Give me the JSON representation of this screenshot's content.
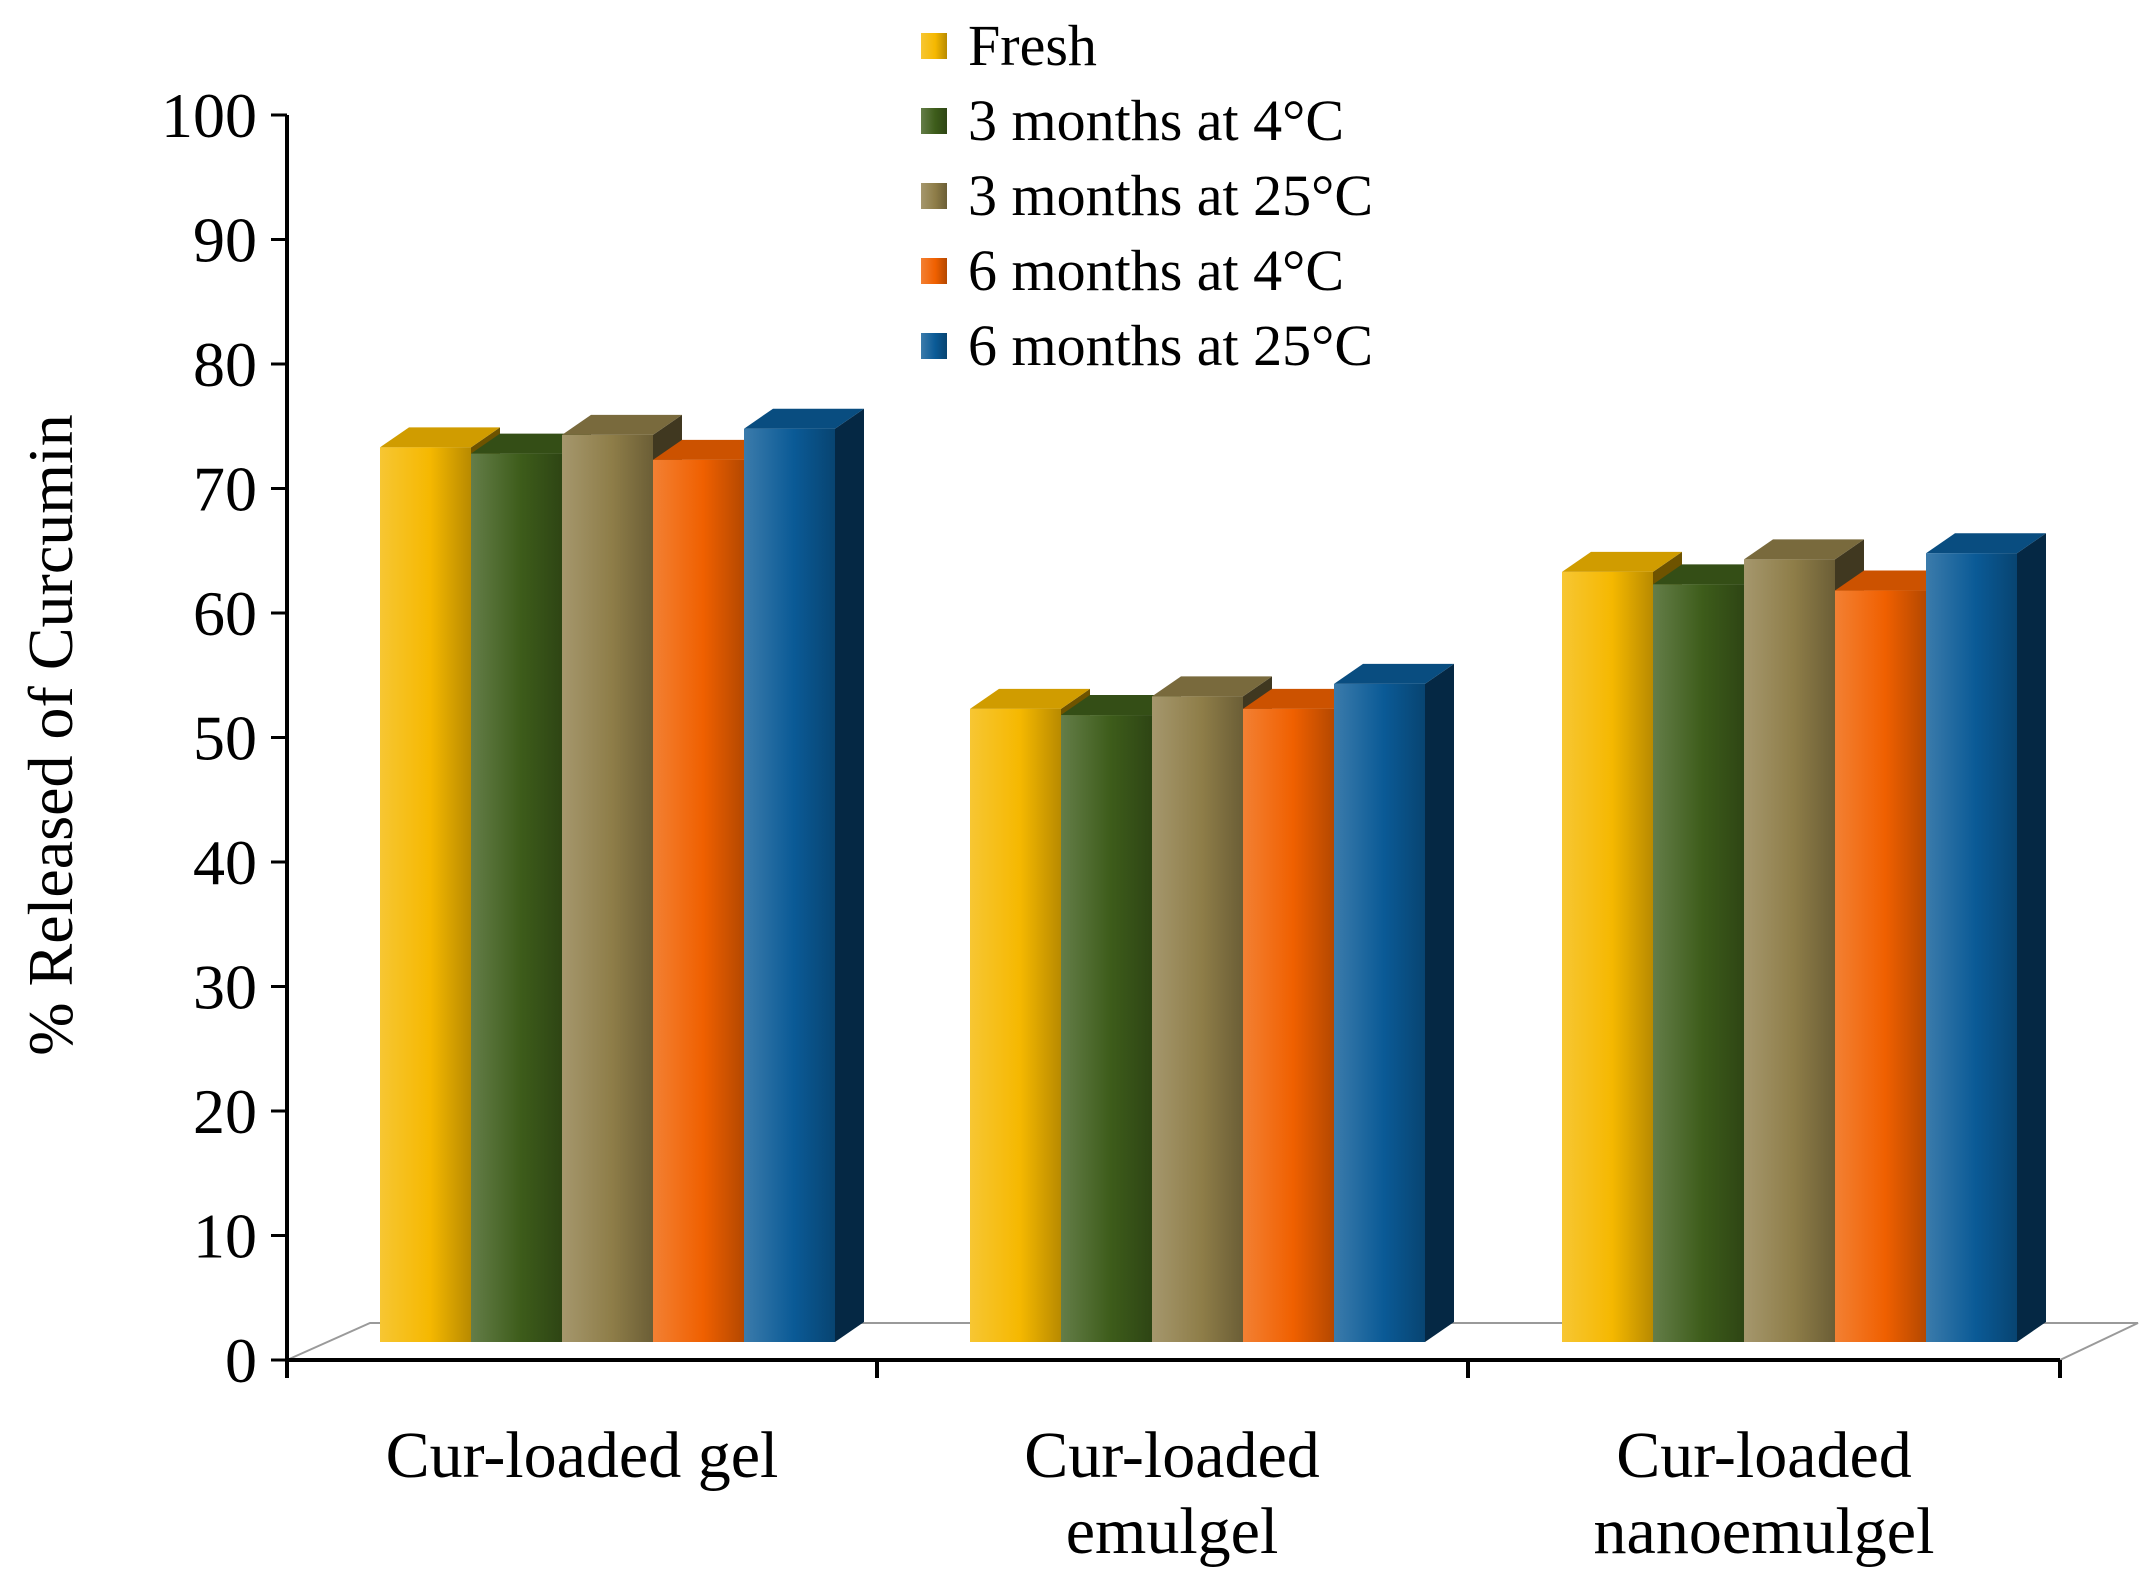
{
  "chart_data": {
    "type": "bar",
    "title": "",
    "xlabel": "",
    "ylabel": "% Released of Curcumin",
    "ylim": [
      0,
      100
    ],
    "yticks": [
      "0",
      "10",
      "20",
      "30",
      "40",
      "50",
      "60",
      "70",
      "80",
      "90",
      "100"
    ],
    "categories": [
      [
        "Cur-loaded gel"
      ],
      [
        "Cur-loaded",
        "emulgel"
      ],
      [
        "Cur-loaded",
        "nanoemulgel"
      ]
    ],
    "series": [
      {
        "name": "Fresh",
        "color": "#f5b800",
        "values": [
          72.5,
          51.5,
          62.5
        ]
      },
      {
        "name": "3 months at 4°C",
        "color": "#3d5c1a",
        "values": [
          72.0,
          51.0,
          61.5
        ]
      },
      {
        "name": "3 months at 25°C",
        "color": "#8e7d48",
        "values": [
          73.5,
          52.5,
          63.5
        ]
      },
      {
        "name": "6 months at 4°C",
        "color": "#f06000",
        "values": [
          71.5,
          51.5,
          61.0
        ]
      },
      {
        "name": "6 months at 25°C",
        "color": "#0a5a96",
        "values": [
          74.0,
          53.5,
          64.0
        ]
      }
    ],
    "legend_position": "top-center",
    "grid": false
  }
}
